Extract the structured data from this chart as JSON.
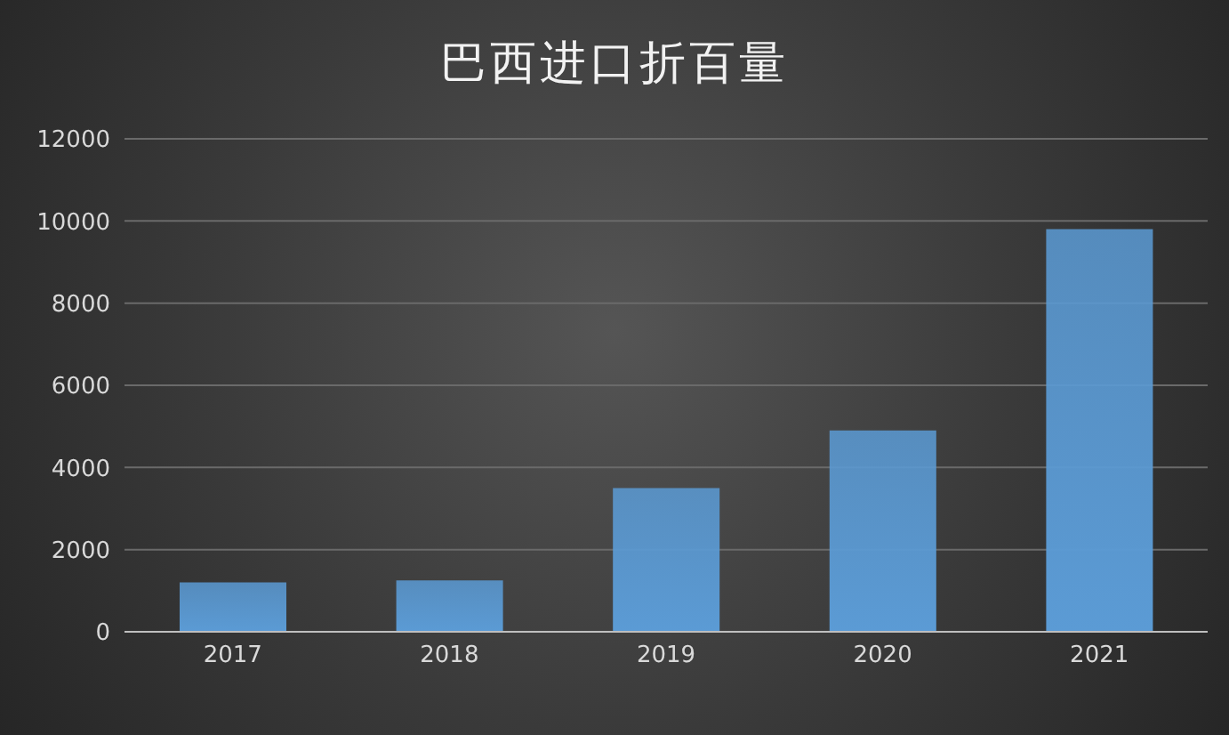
{
  "chart_data": {
    "type": "bar",
    "title": "巴西进口折百量",
    "categories": [
      "2017",
      "2018",
      "2019",
      "2020",
      "2021"
    ],
    "values": [
      1200,
      1250,
      3500,
      4900,
      9800
    ],
    "color": "#5b9bd5",
    "ylim": [
      0,
      12000
    ],
    "yticks": [
      0,
      2000,
      4000,
      6000,
      8000,
      10000,
      12000
    ],
    "grid": "y"
  }
}
